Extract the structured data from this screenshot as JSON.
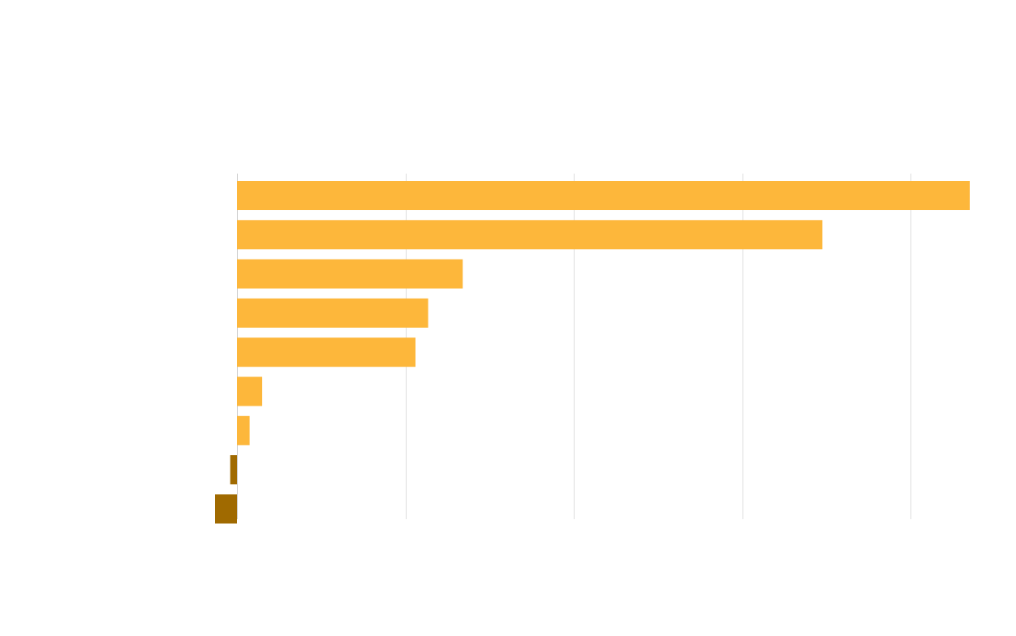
{
  "chart_data": {
    "type": "bar",
    "orientation": "horizontal",
    "title": "",
    "xlabel": "",
    "ylabel": "",
    "categories": [
      "",
      "",
      "",
      "",
      "",
      "",
      "",
      "",
      ""
    ],
    "values": [
      870,
      695,
      268,
      227,
      212,
      30,
      15,
      -8,
      -26
    ],
    "xlim": [
      0,
      870
    ],
    "gridlines_x": [
      200,
      400,
      600,
      800
    ],
    "grid": true,
    "legend": "none",
    "colors": {
      "positive": "#FDB73B",
      "negative": "#A06A00",
      "grid": "#DDDDDD",
      "zero_line": "#CCCCCC",
      "background": "#FFFFFF"
    }
  }
}
